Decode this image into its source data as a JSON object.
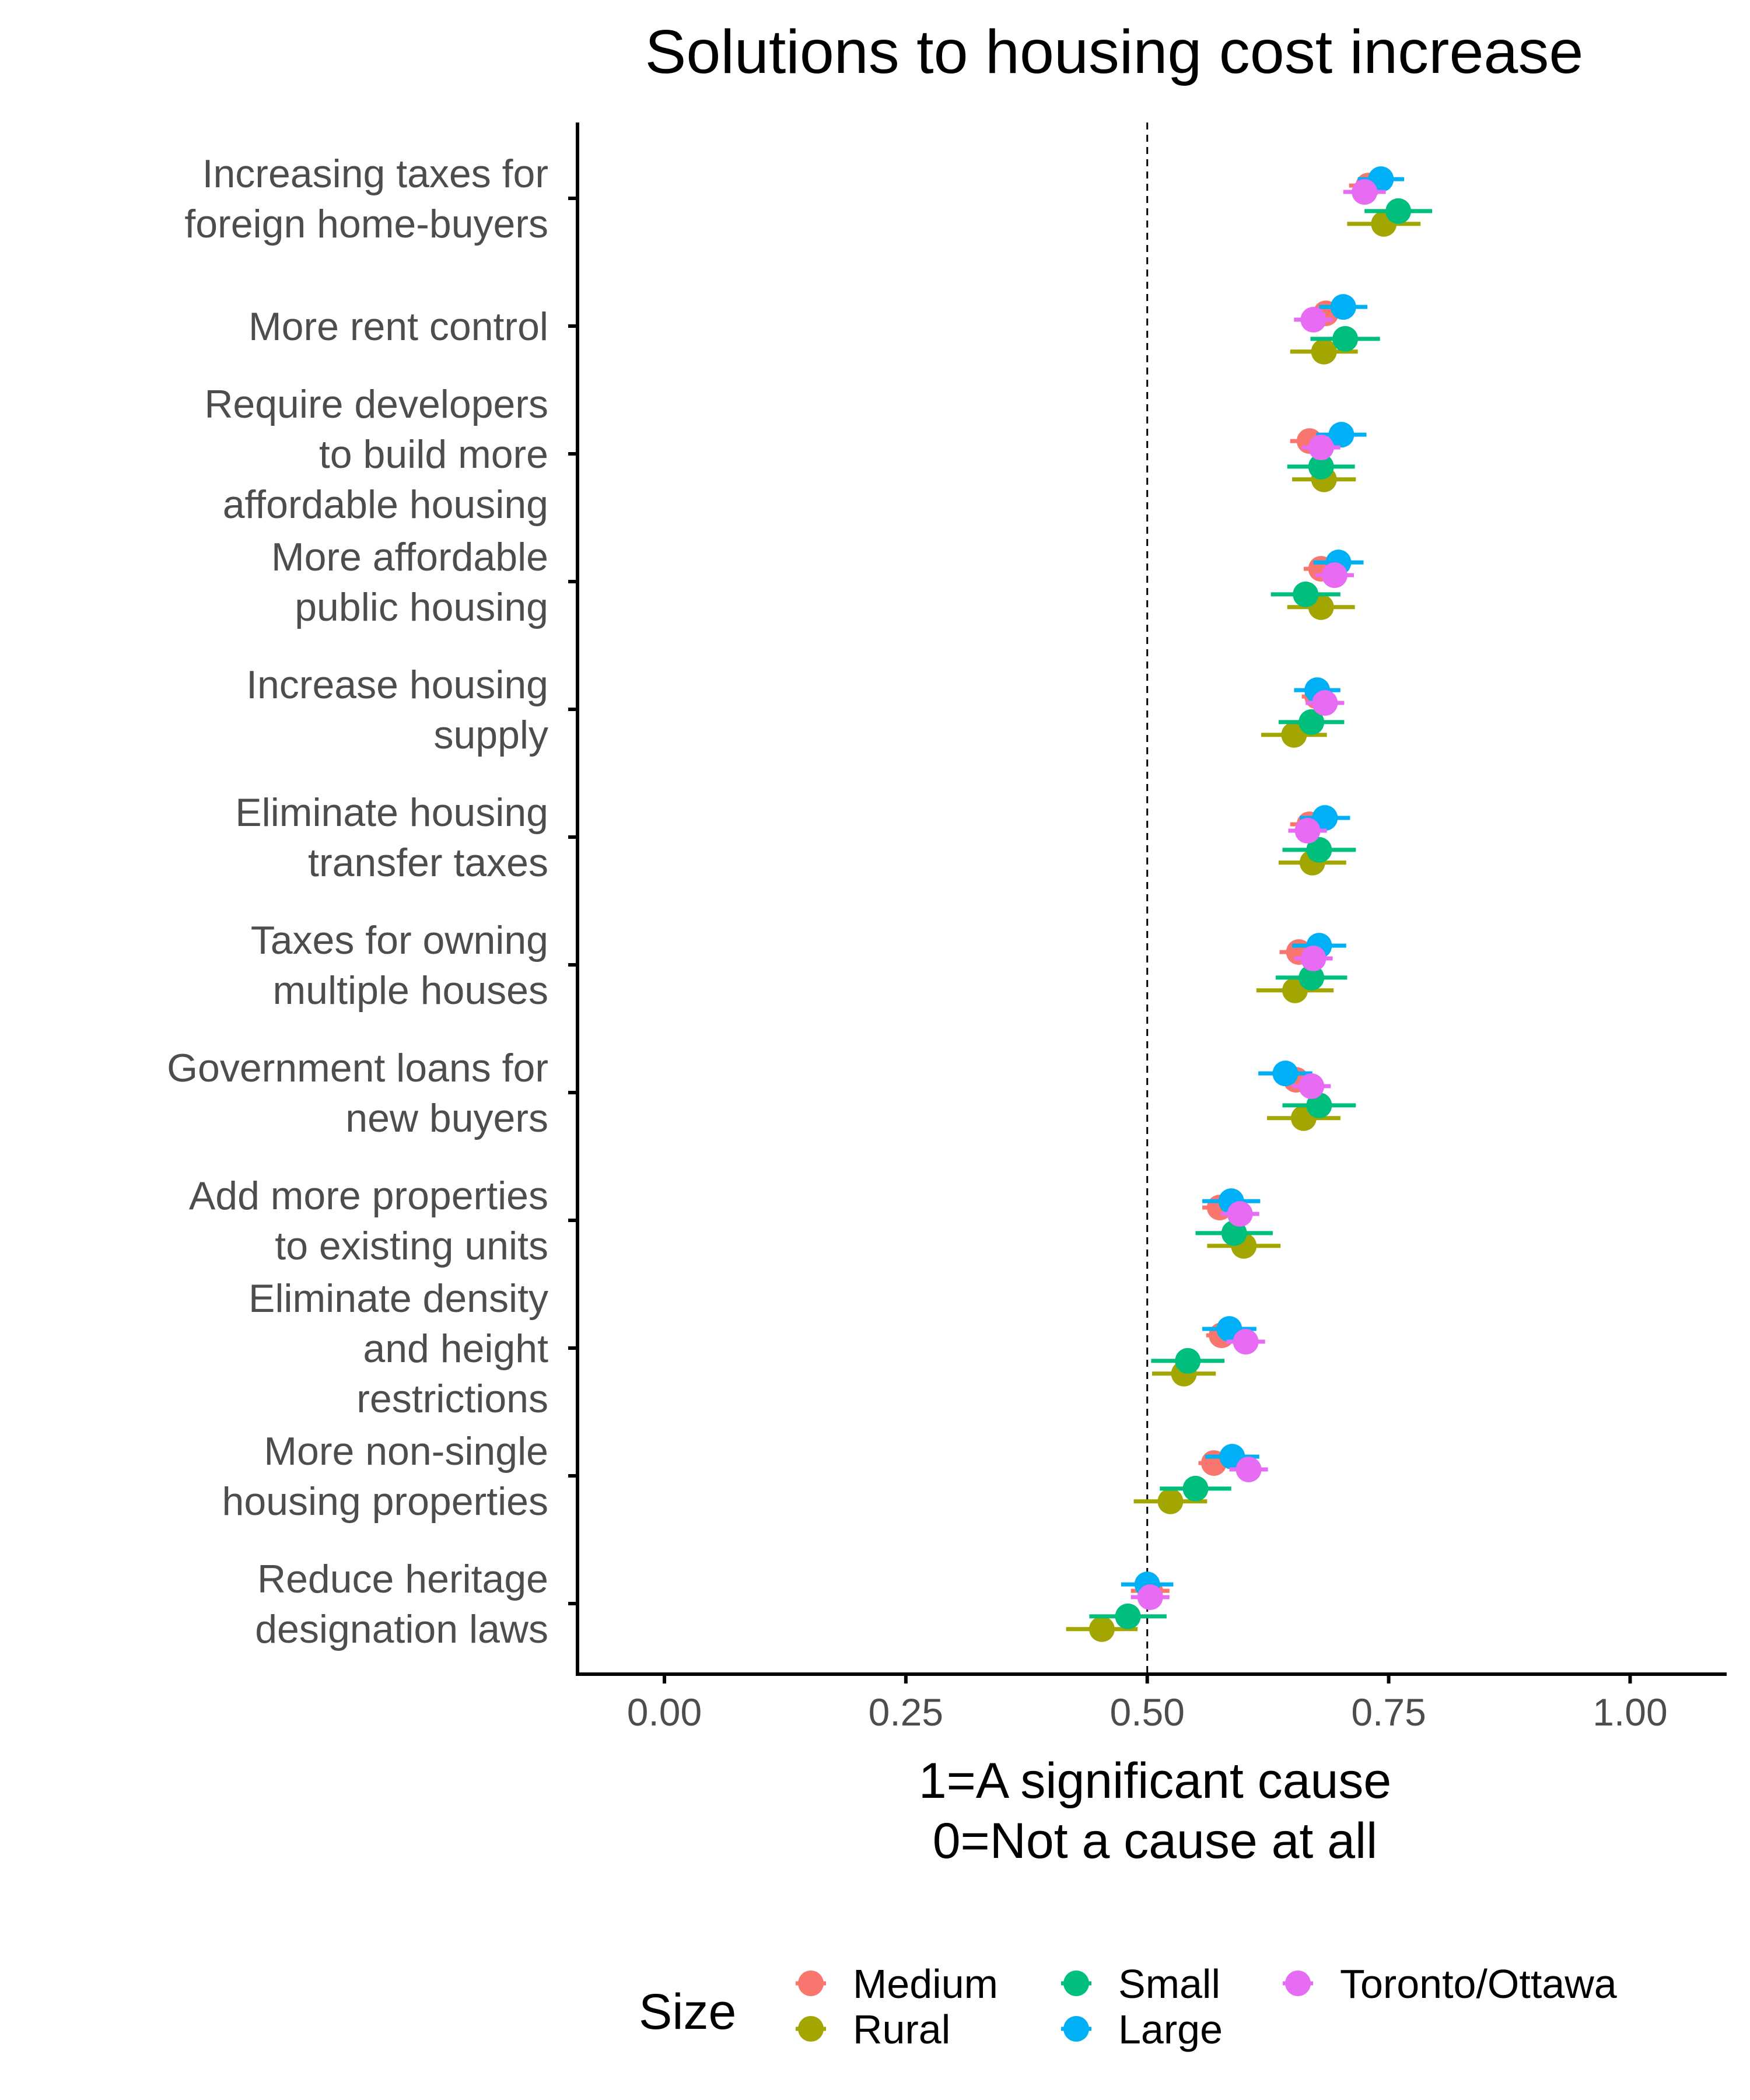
{
  "chart_data": {
    "type": "scatter",
    "title": "Solutions to housing cost increase",
    "xlabel_lines": [
      "1=A significant cause",
      "0=Not a cause at all"
    ],
    "xlim": [
      -0.09,
      1.1
    ],
    "xticks": [
      {
        "value": 0,
        "label": "0.00"
      },
      {
        "value": 0.25,
        "label": "0.25"
      },
      {
        "value": 0.5,
        "label": "0.50"
      },
      {
        "value": 0.75,
        "label": "0.75"
      },
      {
        "value": 1,
        "label": "1.00"
      }
    ],
    "reference_line": 0.5,
    "categories": [
      {
        "lines": [
          "Increasing taxes for",
          "foreign home-buyers"
        ]
      },
      {
        "lines": [
          "More rent control"
        ]
      },
      {
        "lines": [
          "Require developers",
          "to build more",
          "affordable housing"
        ]
      },
      {
        "lines": [
          "More affordable",
          "public housing"
        ]
      },
      {
        "lines": [
          "Increase housing",
          "supply"
        ]
      },
      {
        "lines": [
          "Eliminate housing",
          "transfer taxes"
        ]
      },
      {
        "lines": [
          "Taxes for owning",
          "multiple houses"
        ]
      },
      {
        "lines": [
          "Government loans for",
          "new buyers"
        ]
      },
      {
        "lines": [
          "Add more properties",
          "to existing units"
        ]
      },
      {
        "lines": [
          "Eliminate density",
          "and height",
          "restrictions"
        ]
      },
      {
        "lines": [
          "More non-single",
          "housing properties"
        ]
      },
      {
        "lines": [
          "Reduce heritage",
          "designation laws"
        ]
      }
    ],
    "series": [
      {
        "name": "Medium",
        "color": "#F8766D",
        "dodge": -0.1,
        "values": [
          0.729,
          0.685,
          0.668,
          0.68,
          0.676,
          0.668,
          0.657,
          0.654,
          0.575,
          0.577,
          0.569,
          0.503
        ],
        "ci": [
          0.02,
          0.018,
          0.02,
          0.018,
          0.016,
          0.02,
          0.02,
          0.02,
          0.018,
          0.016,
          0.016,
          0.02
        ]
      },
      {
        "name": "Rural",
        "color": "#A3A500",
        "dodge": 0.2,
        "values": [
          0.745,
          0.683,
          0.683,
          0.68,
          0.652,
          0.671,
          0.653,
          0.662,
          0.6,
          0.538,
          0.524,
          0.453
        ],
        "ci": [
          0.038,
          0.035,
          0.033,
          0.035,
          0.034,
          0.035,
          0.04,
          0.038,
          0.038,
          0.033,
          0.038,
          0.037
        ]
      },
      {
        "name": "Small",
        "color": "#00BF7D",
        "dodge": 0.1,
        "values": [
          0.76,
          0.705,
          0.68,
          0.664,
          0.67,
          0.678,
          0.67,
          0.678,
          0.59,
          0.542,
          0.55,
          0.48
        ],
        "ci": [
          0.035,
          0.036,
          0.035,
          0.036,
          0.034,
          0.038,
          0.037,
          0.038,
          0.04,
          0.038,
          0.037,
          0.04
        ]
      },
      {
        "name": "Large",
        "color": "#00B0F6",
        "dodge": -0.15,
        "values": [
          0.742,
          0.703,
          0.701,
          0.698,
          0.676,
          0.684,
          0.678,
          0.643,
          0.587,
          0.585,
          0.588,
          0.5
        ],
        "ci": [
          0.024,
          0.025,
          0.026,
          0.026,
          0.024,
          0.026,
          0.028,
          0.028,
          0.03,
          0.028,
          0.028,
          0.027
        ]
      },
      {
        "name": "Toronto/Ottawa",
        "color": "#E76BF3",
        "dodge": -0.05,
        "values": [
          0.725,
          0.672,
          0.68,
          0.694,
          0.684,
          0.666,
          0.672,
          0.67,
          0.596,
          0.602,
          0.605,
          0.503
        ],
        "ci": [
          0.022,
          0.02,
          0.02,
          0.02,
          0.02,
          0.02,
          0.02,
          0.02,
          0.02,
          0.02,
          0.02,
          0.02
        ]
      }
    ],
    "legend": {
      "title": "Size",
      "position": "bottom",
      "columns": [
        [
          "Medium",
          "Rural"
        ],
        [
          "Small",
          "Large"
        ],
        [
          "Toronto/Ottawa"
        ]
      ]
    },
    "grid": false
  }
}
